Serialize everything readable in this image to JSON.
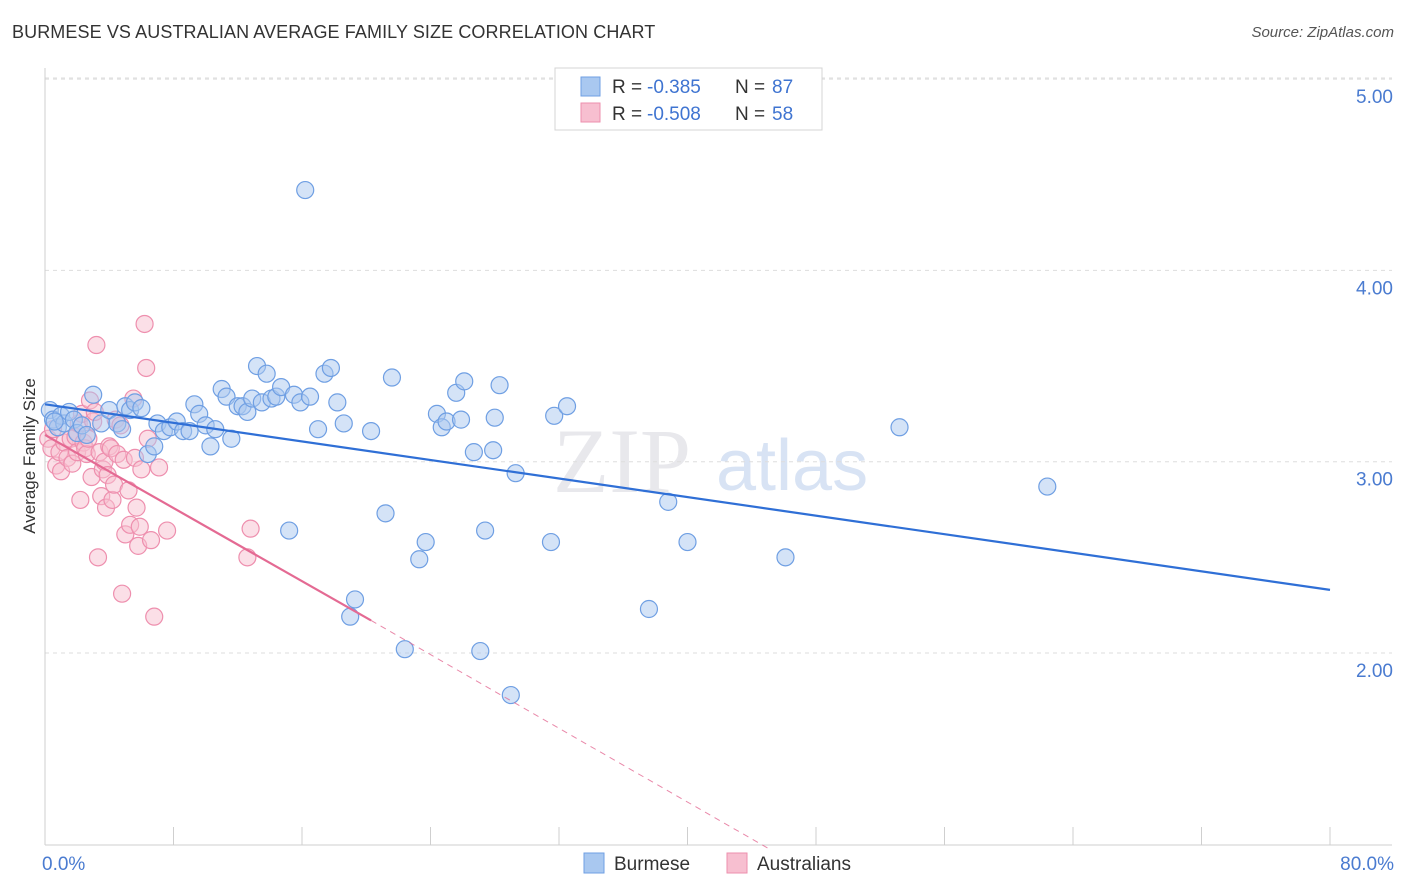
{
  "header": {
    "title": "BURMESE VS AUSTRALIAN AVERAGE FAMILY SIZE CORRELATION CHART",
    "source": "Source: ZipAtlas.com"
  },
  "watermark": {
    "zip": "ZIP",
    "atlas": "atlas"
  },
  "colors": {
    "burmese_fill": "#a9c8f0",
    "burmese_stroke": "#6f9fe3",
    "burmese_line": "#2f6fd6",
    "australian_fill": "#f7bfd0",
    "australian_stroke": "#ee8fae",
    "australian_line": "#e46a93",
    "grid": "#dddddd",
    "tick_label": "#4a7bd0"
  },
  "stats": {
    "burmese": {
      "r_label": "R =",
      "r": "-0.385",
      "n_label": "N =",
      "n": "87"
    },
    "australians": {
      "r_label": "R =",
      "r": "-0.508",
      "n_label": "N =",
      "n": "58"
    }
  },
  "chart_data": {
    "type": "scatter",
    "title": "BURMESE VS AUSTRALIAN AVERAGE FAMILY SIZE CORRELATION CHART",
    "xlabel": "",
    "ylabel": "Average Family Size",
    "xlim": [
      0,
      80
    ],
    "ylim": [
      1.0,
      5.2
    ],
    "x_tick_labels": {
      "min": "0.0%",
      "max": "80.0%"
    },
    "y_ticks": [
      {
        "value": 2.0,
        "label": "2.00"
      },
      {
        "value": 3.0,
        "label": "3.00"
      },
      {
        "value": 4.0,
        "label": "4.00"
      },
      {
        "value": 5.0,
        "label": "5.00"
      }
    ],
    "legend": [
      "Burmese",
      "Australians"
    ],
    "series": [
      {
        "name": "Burmese",
        "trend": {
          "x0": 0,
          "y0": 3.3,
          "x1": 80,
          "y1": 2.33
        },
        "points": [
          [
            0.3,
            3.27
          ],
          [
            0.5,
            3.22
          ],
          [
            0.8,
            3.18
          ],
          [
            1.0,
            3.24
          ],
          [
            1.2,
            3.2
          ],
          [
            1.5,
            3.26
          ],
          [
            1.8,
            3.22
          ],
          [
            2.0,
            3.15
          ],
          [
            2.3,
            3.19
          ],
          [
            2.6,
            3.14
          ],
          [
            3.0,
            3.35
          ],
          [
            3.5,
            3.2
          ],
          [
            4.0,
            3.27
          ],
          [
            4.5,
            3.2
          ],
          [
            4.8,
            3.17
          ],
          [
            5.0,
            3.29
          ],
          [
            5.3,
            3.27
          ],
          [
            5.6,
            3.31
          ],
          [
            6.0,
            3.28
          ],
          [
            6.4,
            3.04
          ],
          [
            6.8,
            3.08
          ],
          [
            7.0,
            3.2
          ],
          [
            7.4,
            3.16
          ],
          [
            7.8,
            3.18
          ],
          [
            8.2,
            3.21
          ],
          [
            8.6,
            3.16
          ],
          [
            9.0,
            3.16
          ],
          [
            9.3,
            3.3
          ],
          [
            9.6,
            3.25
          ],
          [
            10.0,
            3.19
          ],
          [
            10.3,
            3.08
          ],
          [
            10.6,
            3.17
          ],
          [
            11.0,
            3.38
          ],
          [
            11.3,
            3.34
          ],
          [
            11.6,
            3.12
          ],
          [
            12.0,
            3.29
          ],
          [
            12.3,
            3.29
          ],
          [
            12.6,
            3.26
          ],
          [
            12.9,
            3.33
          ],
          [
            13.2,
            3.5
          ],
          [
            13.5,
            3.31
          ],
          [
            13.8,
            3.46
          ],
          [
            14.1,
            3.33
          ],
          [
            14.4,
            3.34
          ],
          [
            14.7,
            3.39
          ],
          [
            15.2,
            2.64
          ],
          [
            15.5,
            3.35
          ],
          [
            15.9,
            3.31
          ],
          [
            16.2,
            4.42
          ],
          [
            16.5,
            3.34
          ],
          [
            17.0,
            3.17
          ],
          [
            17.4,
            3.46
          ],
          [
            17.8,
            3.49
          ],
          [
            18.2,
            3.31
          ],
          [
            18.6,
            3.2
          ],
          [
            19.0,
            2.19
          ],
          [
            19.3,
            2.28
          ],
          [
            20.3,
            3.16
          ],
          [
            21.2,
            2.73
          ],
          [
            21.6,
            3.44
          ],
          [
            22.4,
            2.02
          ],
          [
            23.3,
            2.49
          ],
          [
            23.7,
            2.58
          ],
          [
            24.4,
            3.25
          ],
          [
            24.7,
            3.18
          ],
          [
            25.0,
            3.21
          ],
          [
            25.6,
            3.36
          ],
          [
            25.9,
            3.22
          ],
          [
            26.1,
            3.42
          ],
          [
            26.7,
            3.05
          ],
          [
            27.1,
            2.01
          ],
          [
            27.4,
            2.64
          ],
          [
            27.9,
            3.06
          ],
          [
            28.0,
            3.23
          ],
          [
            28.3,
            3.4
          ],
          [
            29.0,
            1.78
          ],
          [
            29.3,
            2.94
          ],
          [
            31.5,
            2.58
          ],
          [
            31.7,
            3.24
          ],
          [
            32.5,
            3.29
          ],
          [
            37.6,
            2.23
          ],
          [
            38.8,
            2.79
          ],
          [
            40.0,
            2.58
          ],
          [
            46.1,
            2.5
          ],
          [
            53.2,
            3.18
          ],
          [
            62.4,
            2.87
          ],
          [
            0.6,
            3.21
          ]
        ]
      },
      {
        "name": "Australians",
        "trend": {
          "x0": 0,
          "y0": 3.14,
          "x1": 20.3,
          "y1": 2.17
        },
        "trend_dashed": {
          "x0": 20.3,
          "y0": 2.17,
          "x1": 45.0,
          "y1": 0.98
        },
        "points": [
          [
            0.2,
            3.12
          ],
          [
            0.4,
            3.07
          ],
          [
            0.5,
            3.17
          ],
          [
            0.7,
            2.98
          ],
          [
            0.9,
            3.05
          ],
          [
            1.0,
            2.95
          ],
          [
            1.2,
            3.1
          ],
          [
            1.4,
            3.02
          ],
          [
            1.6,
            3.12
          ],
          [
            1.7,
            2.99
          ],
          [
            1.9,
            3.13
          ],
          [
            2.0,
            3.05
          ],
          [
            2.1,
            3.2
          ],
          [
            2.2,
            2.8
          ],
          [
            2.3,
            3.25
          ],
          [
            2.4,
            3.1
          ],
          [
            2.5,
            3.07
          ],
          [
            2.6,
            3.04
          ],
          [
            2.7,
            3.12
          ],
          [
            2.8,
            3.32
          ],
          [
            2.9,
            2.92
          ],
          [
            3.0,
            3.21
          ],
          [
            3.1,
            3.26
          ],
          [
            3.2,
            3.61
          ],
          [
            3.3,
            2.5
          ],
          [
            3.4,
            3.05
          ],
          [
            3.5,
            2.82
          ],
          [
            3.6,
            2.96
          ],
          [
            3.7,
            3.0
          ],
          [
            3.8,
            2.76
          ],
          [
            3.9,
            2.93
          ],
          [
            4.0,
            3.08
          ],
          [
            4.1,
            3.07
          ],
          [
            4.2,
            2.8
          ],
          [
            4.3,
            2.88
          ],
          [
            4.4,
            3.22
          ],
          [
            4.5,
            3.04
          ],
          [
            4.7,
            3.19
          ],
          [
            4.8,
            2.31
          ],
          [
            4.9,
            3.01
          ],
          [
            5.0,
            2.62
          ],
          [
            5.2,
            2.85
          ],
          [
            5.3,
            2.67
          ],
          [
            5.5,
            3.33
          ],
          [
            5.6,
            3.02
          ],
          [
            5.7,
            2.76
          ],
          [
            5.8,
            2.56
          ],
          [
            5.9,
            2.66
          ],
          [
            6.0,
            2.96
          ],
          [
            6.2,
            3.72
          ],
          [
            6.3,
            3.49
          ],
          [
            6.4,
            3.12
          ],
          [
            6.6,
            2.59
          ],
          [
            6.8,
            2.19
          ],
          [
            7.1,
            2.97
          ],
          [
            7.6,
            2.64
          ],
          [
            12.6,
            2.5
          ],
          [
            12.8,
            2.65
          ]
        ]
      }
    ]
  }
}
